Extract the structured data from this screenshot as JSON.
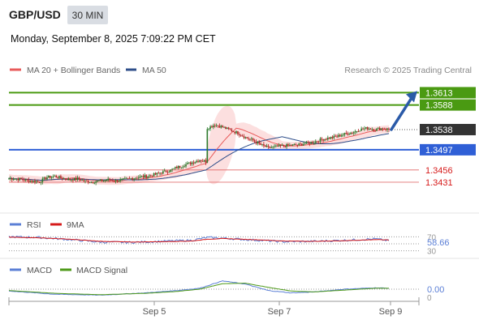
{
  "header": {
    "pair": "GBP/USD",
    "timeframe": "30 MIN"
  },
  "datetime": "Monday, September 8, 2025 7:09:22 PM CET",
  "legend": {
    "ma20": "MA 20 + Bollinger Bands",
    "ma50": "MA 50"
  },
  "copyright": "Research © 2025 Trading Central",
  "colors": {
    "resistance": "#4a9a12",
    "pivot": "#2f5fd6",
    "support": "#e06464",
    "last": "#333333",
    "ma20": "#e85a5a",
    "ma50": "#2e4e8a",
    "band": "#fcd9d9",
    "up": "#2c7a2c",
    "down": "#b22222",
    "arrow": "#2a5aa8",
    "rsi": "#5b7fd6",
    "rsi_ma": "#d61a1a",
    "macd": "#5b7fd6",
    "macd_signal": "#4f9a1a"
  },
  "chart_data": {
    "type": "candlestick",
    "x_ticks": [
      "Sep 5",
      "Sep 7",
      "Sep 9"
    ],
    "ylim": [
      1.337,
      1.3645
    ],
    "levels": [
      {
        "value": 1.3613,
        "label": "1.3613",
        "kind": "resistance"
      },
      {
        "value": 1.3588,
        "label": "1.3588",
        "kind": "resistance"
      },
      {
        "value": 1.3538,
        "label": "1.3538",
        "kind": "last"
      },
      {
        "value": 1.3497,
        "label": "1.3497",
        "kind": "pivot"
      },
      {
        "value": 1.3456,
        "label": "1.3456",
        "kind": "support"
      },
      {
        "value": 1.3431,
        "label": "1.3431",
        "kind": "support"
      }
    ],
    "price_path": [
      [
        0,
        1.3439
      ],
      [
        5,
        1.3438
      ],
      [
        10,
        1.3436
      ],
      [
        15,
        1.3433
      ],
      [
        20,
        1.3432
      ],
      [
        25,
        1.3441
      ],
      [
        30,
        1.3443
      ],
      [
        35,
        1.3439
      ],
      [
        40,
        1.3436
      ],
      [
        45,
        1.3438
      ],
      [
        50,
        1.3433
      ],
      [
        55,
        1.3432
      ],
      [
        60,
        1.3434
      ],
      [
        65,
        1.3436
      ],
      [
        70,
        1.3434
      ],
      [
        75,
        1.3436
      ],
      [
        80,
        1.3439
      ],
      [
        85,
        1.3441
      ],
      [
        90,
        1.3443
      ],
      [
        95,
        1.3446
      ],
      [
        100,
        1.3451
      ],
      [
        105,
        1.3454
      ],
      [
        110,
        1.3461
      ],
      [
        115,
        1.3466
      ],
      [
        120,
        1.3471
      ],
      [
        125,
        1.3476
      ],
      [
        129,
        1.3473
      ],
      [
        130,
        1.3541
      ],
      [
        135,
        1.3548
      ],
      [
        140,
        1.3543
      ],
      [
        145,
        1.3537
      ],
      [
        150,
        1.3531
      ],
      [
        155,
        1.3522
      ],
      [
        160,
        1.3516
      ],
      [
        165,
        1.3507
      ],
      [
        170,
        1.3501
      ],
      [
        175,
        1.3503
      ],
      [
        180,
        1.3505
      ],
      [
        185,
        1.3506
      ],
      [
        190,
        1.3507
      ],
      [
        195,
        1.351
      ],
      [
        200,
        1.3513
      ],
      [
        205,
        1.3518
      ],
      [
        210,
        1.3521
      ],
      [
        215,
        1.3524
      ],
      [
        220,
        1.3529
      ],
      [
        225,
        1.3532
      ],
      [
        230,
        1.3538
      ],
      [
        235,
        1.3541
      ],
      [
        240,
        1.3538
      ],
      [
        245,
        1.3541
      ],
      [
        249,
        1.3538
      ]
    ],
    "projection": {
      "from": 1.3538,
      "to": 1.3613
    },
    "rsi": {
      "label": "RSI",
      "ma_label": "9MA",
      "value_label": "58.66",
      "levels": [
        70,
        50,
        30
      ],
      "ylim": [
        20,
        80
      ],
      "rsi_path": [
        [
          0,
          70
        ],
        [
          20,
          68
        ],
        [
          40,
          62
        ],
        [
          60,
          55
        ],
        [
          80,
          54
        ],
        [
          100,
          57
        ],
        [
          120,
          60
        ],
        [
          130,
          68
        ],
        [
          140,
          66
        ],
        [
          160,
          61
        ],
        [
          180,
          56
        ],
        [
          200,
          57
        ],
        [
          220,
          60
        ],
        [
          240,
          64
        ],
        [
          249,
          59
        ]
      ],
      "ma_path": [
        [
          0,
          69
        ],
        [
          20,
          67
        ],
        [
          40,
          63
        ],
        [
          60,
          57
        ],
        [
          80,
          55
        ],
        [
          100,
          56
        ],
        [
          120,
          58
        ],
        [
          130,
          63
        ],
        [
          140,
          65
        ],
        [
          160,
          62
        ],
        [
          180,
          58
        ],
        [
          200,
          57
        ],
        [
          220,
          59
        ],
        [
          240,
          62
        ],
        [
          249,
          61
        ]
      ]
    },
    "macd": {
      "label": "MACD",
      "signal_label": "MACD Signal",
      "value_label": "0.00",
      "zero_label": "0",
      "macd_path": [
        [
          0,
          -0.0004
        ],
        [
          30,
          -0.0011
        ],
        [
          60,
          -0.0013
        ],
        [
          90,
          -0.0008
        ],
        [
          110,
          -0.0003
        ],
        [
          125,
          0.0002
        ],
        [
          140,
          0.0018
        ],
        [
          155,
          0.0011
        ],
        [
          170,
          -0.0003
        ],
        [
          185,
          -0.0008
        ],
        [
          200,
          -0.0006
        ],
        [
          220,
          0.0
        ],
        [
          240,
          0.0003
        ],
        [
          249,
          0.0002
        ]
      ],
      "signal_path": [
        [
          0,
          -0.0003
        ],
        [
          30,
          -0.0009
        ],
        [
          60,
          -0.0012
        ],
        [
          90,
          -0.0009
        ],
        [
          110,
          -0.0005
        ],
        [
          125,
          0.0
        ],
        [
          140,
          0.0012
        ],
        [
          155,
          0.0013
        ],
        [
          170,
          0.0004
        ],
        [
          185,
          -0.0004
        ],
        [
          200,
          -0.0006
        ],
        [
          220,
          -0.0002
        ],
        [
          240,
          0.0002
        ],
        [
          249,
          0.0002
        ]
      ],
      "ylim": [
        -0.003,
        0.003
      ]
    }
  }
}
